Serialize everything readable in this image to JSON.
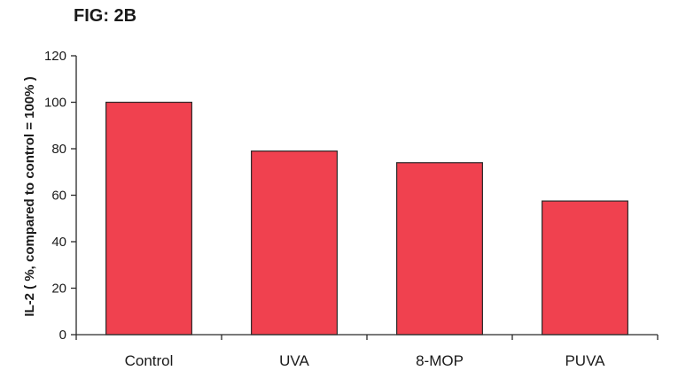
{
  "figure": {
    "title": "FIG: 2B"
  },
  "colors": {
    "bar_fill": "#f0414f",
    "axis": "#2a2a2a",
    "background": "#ffffff"
  },
  "chart_data": {
    "type": "bar",
    "title": "FIG: 2B",
    "xlabel": "",
    "ylabel": "IL-2  ( %, compared to control = 100% )",
    "categories": [
      "Control",
      "UVA",
      "8-MOP",
      "PUVA"
    ],
    "values": [
      100,
      79,
      74,
      57.5
    ],
    "ylim": [
      0,
      120
    ],
    "yticks": [
      0,
      20,
      40,
      60,
      80,
      100,
      120
    ],
    "grid": false,
    "legend": "none"
  }
}
